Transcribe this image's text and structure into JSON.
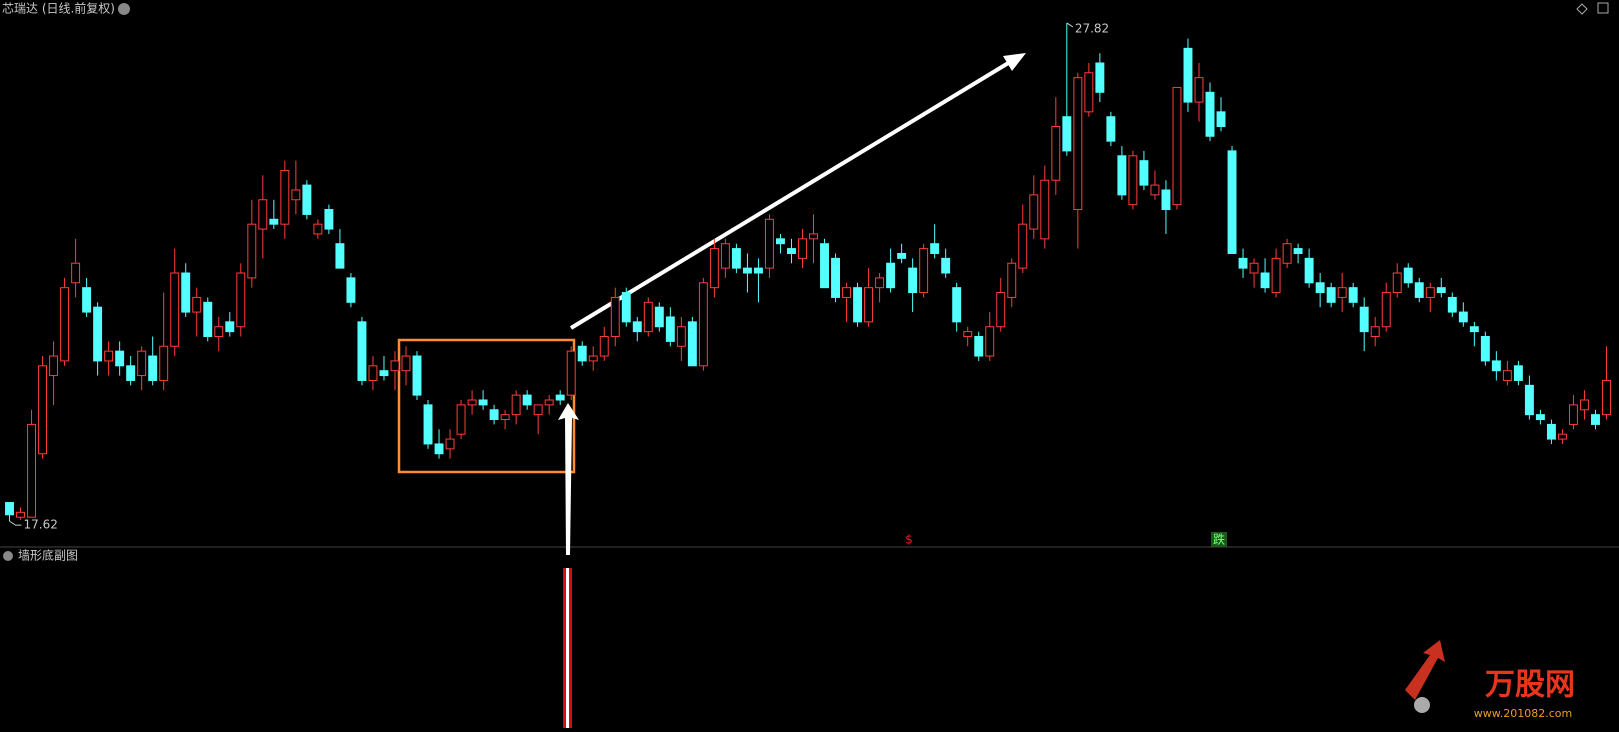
{
  "chart_data": {
    "type": "candlestick",
    "title": "芯瑞达 (日线.前复权)",
    "subchart_title": "墙形底副图",
    "up_color": "#ff3c3c",
    "down_color": "#54ffff",
    "ylim": [
      17.09,
      28.29
    ],
    "annotations": [
      "$",
      "跌"
    ],
    "watermark": [
      "万股网",
      "www.201082.com"
    ],
    "candles": [
      [
        18.0,
        18.0,
        17.62,
        17.75
      ],
      [
        17.7,
        17.9,
        17.65,
        17.8
      ],
      [
        17.7,
        19.9,
        17.7,
        19.6
      ],
      [
        19.0,
        21.0,
        18.9,
        20.8
      ],
      [
        20.6,
        21.3,
        20.0,
        21.0
      ],
      [
        20.9,
        22.6,
        20.8,
        22.4
      ],
      [
        22.5,
        23.4,
        22.2,
        22.9
      ],
      [
        22.4,
        22.6,
        21.8,
        21.9
      ],
      [
        22.0,
        22.1,
        20.6,
        20.9
      ],
      [
        20.9,
        21.3,
        20.6,
        21.1
      ],
      [
        21.1,
        21.3,
        20.6,
        20.8
      ],
      [
        20.8,
        21.0,
        20.4,
        20.5
      ],
      [
        20.6,
        21.2,
        20.3,
        21.1
      ],
      [
        21.0,
        21.4,
        20.4,
        20.5
      ],
      [
        20.5,
        22.3,
        20.3,
        21.2
      ],
      [
        21.2,
        23.2,
        21.0,
        22.7
      ],
      [
        22.7,
        22.9,
        21.8,
        21.9
      ],
      [
        21.9,
        22.4,
        21.4,
        22.2
      ],
      [
        22.1,
        22.2,
        21.3,
        21.4
      ],
      [
        21.4,
        21.8,
        21.1,
        21.6
      ],
      [
        21.7,
        21.9,
        21.4,
        21.5
      ],
      [
        21.6,
        22.9,
        21.4,
        22.7
      ],
      [
        22.6,
        24.2,
        22.4,
        23.7
      ],
      [
        23.6,
        24.7,
        23.0,
        24.2
      ],
      [
        23.8,
        24.2,
        23.6,
        23.7
      ],
      [
        23.7,
        25.0,
        23.4,
        24.8
      ],
      [
        24.2,
        25.0,
        23.9,
        24.4
      ],
      [
        24.5,
        24.6,
        23.8,
        23.9
      ],
      [
        23.5,
        23.8,
        23.4,
        23.7
      ],
      [
        24.0,
        24.1,
        23.5,
        23.6
      ],
      [
        23.3,
        23.6,
        22.8,
        22.8
      ],
      [
        22.6,
        22.7,
        22.0,
        22.1
      ],
      [
        21.7,
        21.8,
        20.4,
        20.5
      ],
      [
        20.5,
        21.0,
        20.3,
        20.8
      ],
      [
        20.7,
        21.0,
        20.5,
        20.6
      ],
      [
        20.7,
        21.1,
        20.3,
        20.9
      ],
      [
        20.7,
        21.2,
        20.4,
        21.0
      ],
      [
        21.0,
        21.1,
        20.1,
        20.2
      ],
      [
        20.0,
        20.1,
        19.1,
        19.2
      ],
      [
        19.2,
        19.5,
        18.9,
        19.0
      ],
      [
        19.1,
        19.5,
        18.9,
        19.3
      ],
      [
        19.4,
        20.1,
        19.3,
        20.0
      ],
      [
        20.0,
        20.3,
        19.8,
        20.1
      ],
      [
        20.1,
        20.3,
        19.9,
        20.0
      ],
      [
        19.9,
        20.0,
        19.6,
        19.7
      ],
      [
        19.7,
        19.9,
        19.5,
        19.8
      ],
      [
        19.8,
        20.3,
        19.6,
        20.2
      ],
      [
        20.2,
        20.3,
        19.9,
        20.0
      ],
      [
        19.8,
        20.0,
        19.4,
        20.0
      ],
      [
        20.0,
        20.2,
        19.8,
        20.1
      ],
      [
        20.2,
        20.3,
        20.0,
        20.1
      ],
      [
        20.2,
        21.2,
        20.1,
        21.1
      ],
      [
        21.2,
        21.3,
        20.8,
        20.9
      ],
      [
        20.9,
        21.2,
        20.7,
        21.0
      ],
      [
        21.0,
        21.6,
        20.9,
        21.4
      ],
      [
        21.4,
        22.4,
        21.2,
        22.2
      ],
      [
        22.3,
        22.4,
        21.6,
        21.7
      ],
      [
        21.7,
        21.8,
        21.3,
        21.5
      ],
      [
        21.5,
        22.2,
        21.4,
        22.1
      ],
      [
        22.0,
        22.1,
        21.5,
        21.6
      ],
      [
        21.8,
        22.0,
        21.2,
        21.3
      ],
      [
        21.2,
        21.8,
        20.9,
        21.6
      ],
      [
        21.7,
        21.8,
        20.8,
        20.8
      ],
      [
        20.8,
        22.6,
        20.7,
        22.5
      ],
      [
        22.4,
        23.4,
        22.2,
        23.2
      ],
      [
        22.8,
        23.4,
        22.6,
        23.3
      ],
      [
        23.2,
        23.3,
        22.7,
        22.8
      ],
      [
        22.8,
        23.1,
        22.3,
        22.7
      ],
      [
        22.8,
        23.0,
        22.1,
        22.7
      ],
      [
        22.8,
        23.9,
        22.6,
        23.8
      ],
      [
        23.4,
        23.5,
        23.1,
        23.3
      ],
      [
        23.2,
        23.4,
        22.9,
        23.1
      ],
      [
        23.0,
        23.6,
        22.8,
        23.4
      ],
      [
        23.4,
        23.9,
        22.9,
        23.5
      ],
      [
        23.3,
        23.4,
        22.4,
        22.4
      ],
      [
        23.0,
        23.1,
        22.1,
        22.2
      ],
      [
        22.2,
        22.5,
        21.7,
        22.4
      ],
      [
        22.4,
        22.5,
        21.6,
        21.7
      ],
      [
        21.7,
        22.8,
        21.6,
        22.4
      ],
      [
        22.4,
        22.7,
        22.1,
        22.6
      ],
      [
        22.9,
        23.2,
        22.3,
        22.4
      ],
      [
        23.1,
        23.3,
        22.9,
        23.0
      ],
      [
        22.8,
        23.0,
        21.9,
        22.3
      ],
      [
        22.3,
        23.3,
        22.2,
        23.2
      ],
      [
        23.3,
        23.7,
        23.0,
        23.1
      ],
      [
        23.0,
        23.2,
        22.6,
        22.7
      ],
      [
        22.4,
        22.5,
        21.5,
        21.7
      ],
      [
        21.4,
        21.6,
        21.2,
        21.5
      ],
      [
        21.4,
        21.5,
        20.9,
        21.0
      ],
      [
        21.0,
        21.9,
        20.9,
        21.6
      ],
      [
        21.6,
        22.6,
        21.5,
        22.3
      ],
      [
        22.2,
        23.0,
        22.0,
        22.9
      ],
      [
        22.8,
        24.1,
        22.7,
        23.7
      ],
      [
        23.6,
        24.7,
        23.4,
        24.3
      ],
      [
        23.4,
        24.9,
        23.2,
        24.6
      ],
      [
        24.6,
        26.3,
        24.3,
        25.7
      ],
      [
        25.9,
        27.82,
        25.1,
        25.2
      ],
      [
        24.0,
        26.8,
        23.2,
        26.7
      ],
      [
        26.0,
        27.0,
        25.9,
        26.8
      ],
      [
        27.0,
        27.2,
        26.2,
        26.4
      ],
      [
        25.9,
        26.0,
        25.3,
        25.4
      ],
      [
        25.1,
        25.3,
        24.2,
        24.3
      ],
      [
        24.1,
        25.2,
        24.0,
        25.1
      ],
      [
        25.0,
        25.2,
        24.4,
        24.5
      ],
      [
        24.3,
        24.8,
        24.2,
        24.5
      ],
      [
        24.4,
        24.6,
        23.5,
        24.0
      ],
      [
        24.1,
        26.5,
        24.0,
        26.5
      ],
      [
        27.3,
        27.5,
        26.0,
        26.2
      ],
      [
        26.2,
        27.0,
        25.8,
        26.7
      ],
      [
        26.4,
        26.6,
        25.4,
        25.5
      ],
      [
        26.0,
        26.3,
        25.6,
        25.7
      ],
      [
        25.2,
        25.3,
        23.1,
        23.1
      ],
      [
        23.0,
        23.2,
        22.6,
        22.8
      ],
      [
        22.7,
        23.0,
        22.4,
        22.9
      ],
      [
        22.7,
        23.0,
        22.3,
        22.4
      ],
      [
        22.3,
        23.2,
        22.2,
        23.0
      ],
      [
        22.9,
        23.4,
        22.8,
        23.3
      ],
      [
        23.2,
        23.3,
        22.9,
        23.1
      ],
      [
        23.0,
        23.2,
        22.4,
        22.5
      ],
      [
        22.5,
        22.7,
        22.0,
        22.3
      ],
      [
        22.4,
        22.5,
        22.0,
        22.1
      ],
      [
        22.2,
        22.7,
        21.9,
        22.4
      ],
      [
        22.4,
        22.5,
        22.0,
        22.1
      ],
      [
        22.0,
        22.2,
        21.1,
        21.5
      ],
      [
        21.4,
        21.8,
        21.2,
        21.6
      ],
      [
        21.6,
        22.5,
        21.5,
        22.3
      ],
      [
        22.3,
        22.9,
        22.2,
        22.7
      ],
      [
        22.8,
        22.9,
        22.4,
        22.5
      ],
      [
        22.5,
        22.6,
        22.1,
        22.2
      ],
      [
        22.2,
        22.5,
        21.9,
        22.4
      ],
      [
        22.4,
        22.6,
        22.2,
        22.3
      ],
      [
        22.2,
        22.3,
        21.8,
        21.9
      ],
      [
        21.9,
        22.1,
        21.6,
        21.7
      ],
      [
        21.6,
        21.7,
        21.2,
        21.5
      ],
      [
        21.4,
        21.5,
        20.8,
        20.9
      ],
      [
        20.9,
        21.1,
        20.5,
        20.7
      ],
      [
        20.5,
        20.9,
        20.4,
        20.7
      ],
      [
        20.8,
        20.9,
        20.4,
        20.5
      ],
      [
        20.4,
        20.6,
        19.7,
        19.8
      ],
      [
        19.8,
        19.9,
        19.6,
        19.7
      ],
      [
        19.6,
        19.7,
        19.2,
        19.3
      ],
      [
        19.3,
        19.5,
        19.2,
        19.4
      ],
      [
        19.6,
        20.2,
        19.5,
        20.0
      ],
      [
        19.9,
        20.3,
        19.7,
        20.1
      ],
      [
        19.8,
        19.9,
        19.5,
        19.6
      ],
      [
        19.8,
        21.2,
        19.7,
        20.5
      ]
    ]
  }
}
